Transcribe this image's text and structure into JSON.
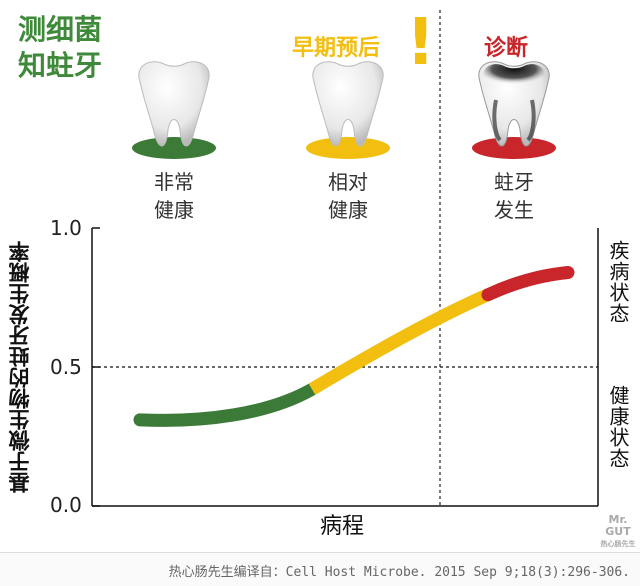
{
  "title_lines": [
    "测细菌",
    "知蛀牙"
  ],
  "stages": {
    "prognosis": "早期预后",
    "diagnosis": "诊断"
  },
  "teeth": [
    {
      "line1": "非常",
      "line2": "健康",
      "base_color": "#3b7a37",
      "state": "healthy"
    },
    {
      "line1": "相对",
      "line2": "健康",
      "base_color": "#f2bf10",
      "state": "healthy"
    },
    {
      "line1": "蛀牙",
      "line2": "发生",
      "base_color": "#c8262a",
      "state": "decayed"
    }
  ],
  "exclamation": "!",
  "right_states": {
    "upper": "疾病状态",
    "lower": "健康状态"
  },
  "watermark": {
    "line1": "Mr.",
    "line2": "GUT",
    "line3": "热心肠先生"
  },
  "footer": "热心肠先生编译自：Cell Host Microbe. 2015 Sep 9;18(3):296-306.",
  "colors": {
    "green": "#3b7a37",
    "yellow": "#f2bf10",
    "red": "#c8262a",
    "title_green": "#3f8a3a"
  },
  "chart_data": {
    "type": "line",
    "title": "",
    "xlabel": "病程",
    "ylabel": "基于微生物的蛀牙发生概率",
    "ylim": [
      0.0,
      1.0
    ],
    "yticks": [
      {
        "value": 0.0,
        "label": "0.0"
      },
      {
        "value": 0.5,
        "label": "0.5"
      },
      {
        "value": 1.0,
        "label": "1.0"
      }
    ],
    "reference_line": 0.5,
    "series": [
      {
        "color": "#3b7a37",
        "points": [
          [
            0.0,
            0.31
          ],
          [
            0.16,
            0.3
          ],
          [
            0.32,
            0.33
          ],
          [
            0.43,
            0.42
          ]
        ]
      },
      {
        "color": "#f2bf10",
        "points": [
          [
            0.43,
            0.42
          ],
          [
            0.57,
            0.54
          ],
          [
            0.74,
            0.68
          ],
          [
            0.87,
            0.76
          ]
        ]
      },
      {
        "color": "#c8262a",
        "points": [
          [
            0.87,
            0.76
          ],
          [
            0.93,
            0.8
          ],
          [
            1.0,
            0.83
          ],
          [
            1.07,
            0.84
          ]
        ]
      }
    ]
  }
}
